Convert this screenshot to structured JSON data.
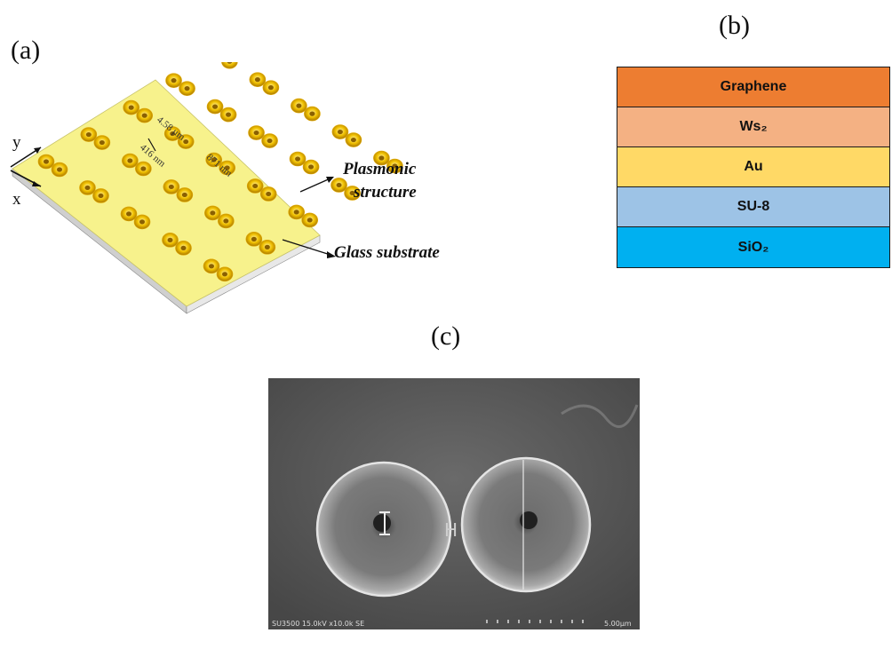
{
  "panels": {
    "a": {
      "label": "(a)"
    },
    "b": {
      "label": "(b)"
    },
    "c": {
      "label": "(c)"
    }
  },
  "figure_a": {
    "axis_y": "y",
    "axis_x": "x",
    "dim_period_y": "4.58 μm",
    "dim_gap": "416 nm",
    "dim_period_x": "871 nm",
    "annotation_structure_line1": "Plasmonic",
    "annotation_structure_line2": "structure",
    "annotation_substrate": "Glass substrate",
    "colors": {
      "plasmonic_surface": "#f7f28c",
      "ring": "#e0a800",
      "substrate": "#d9d9d9"
    }
  },
  "figure_b": {
    "layers": [
      {
        "name": "Graphene",
        "color": "#ed7d31"
      },
      {
        "name": "Ws₂",
        "color": "#f4b183"
      },
      {
        "name": "Au",
        "color": "#ffd966"
      },
      {
        "name": "SU-8",
        "color": "#9dc3e6"
      },
      {
        "name": "SiO₂",
        "color": "#00b0f0"
      }
    ]
  },
  "figure_c": {
    "marker_H": "H",
    "footer_left": "SU3500 15.0kV x10.0k SE",
    "footer_right": "5.00μm"
  }
}
